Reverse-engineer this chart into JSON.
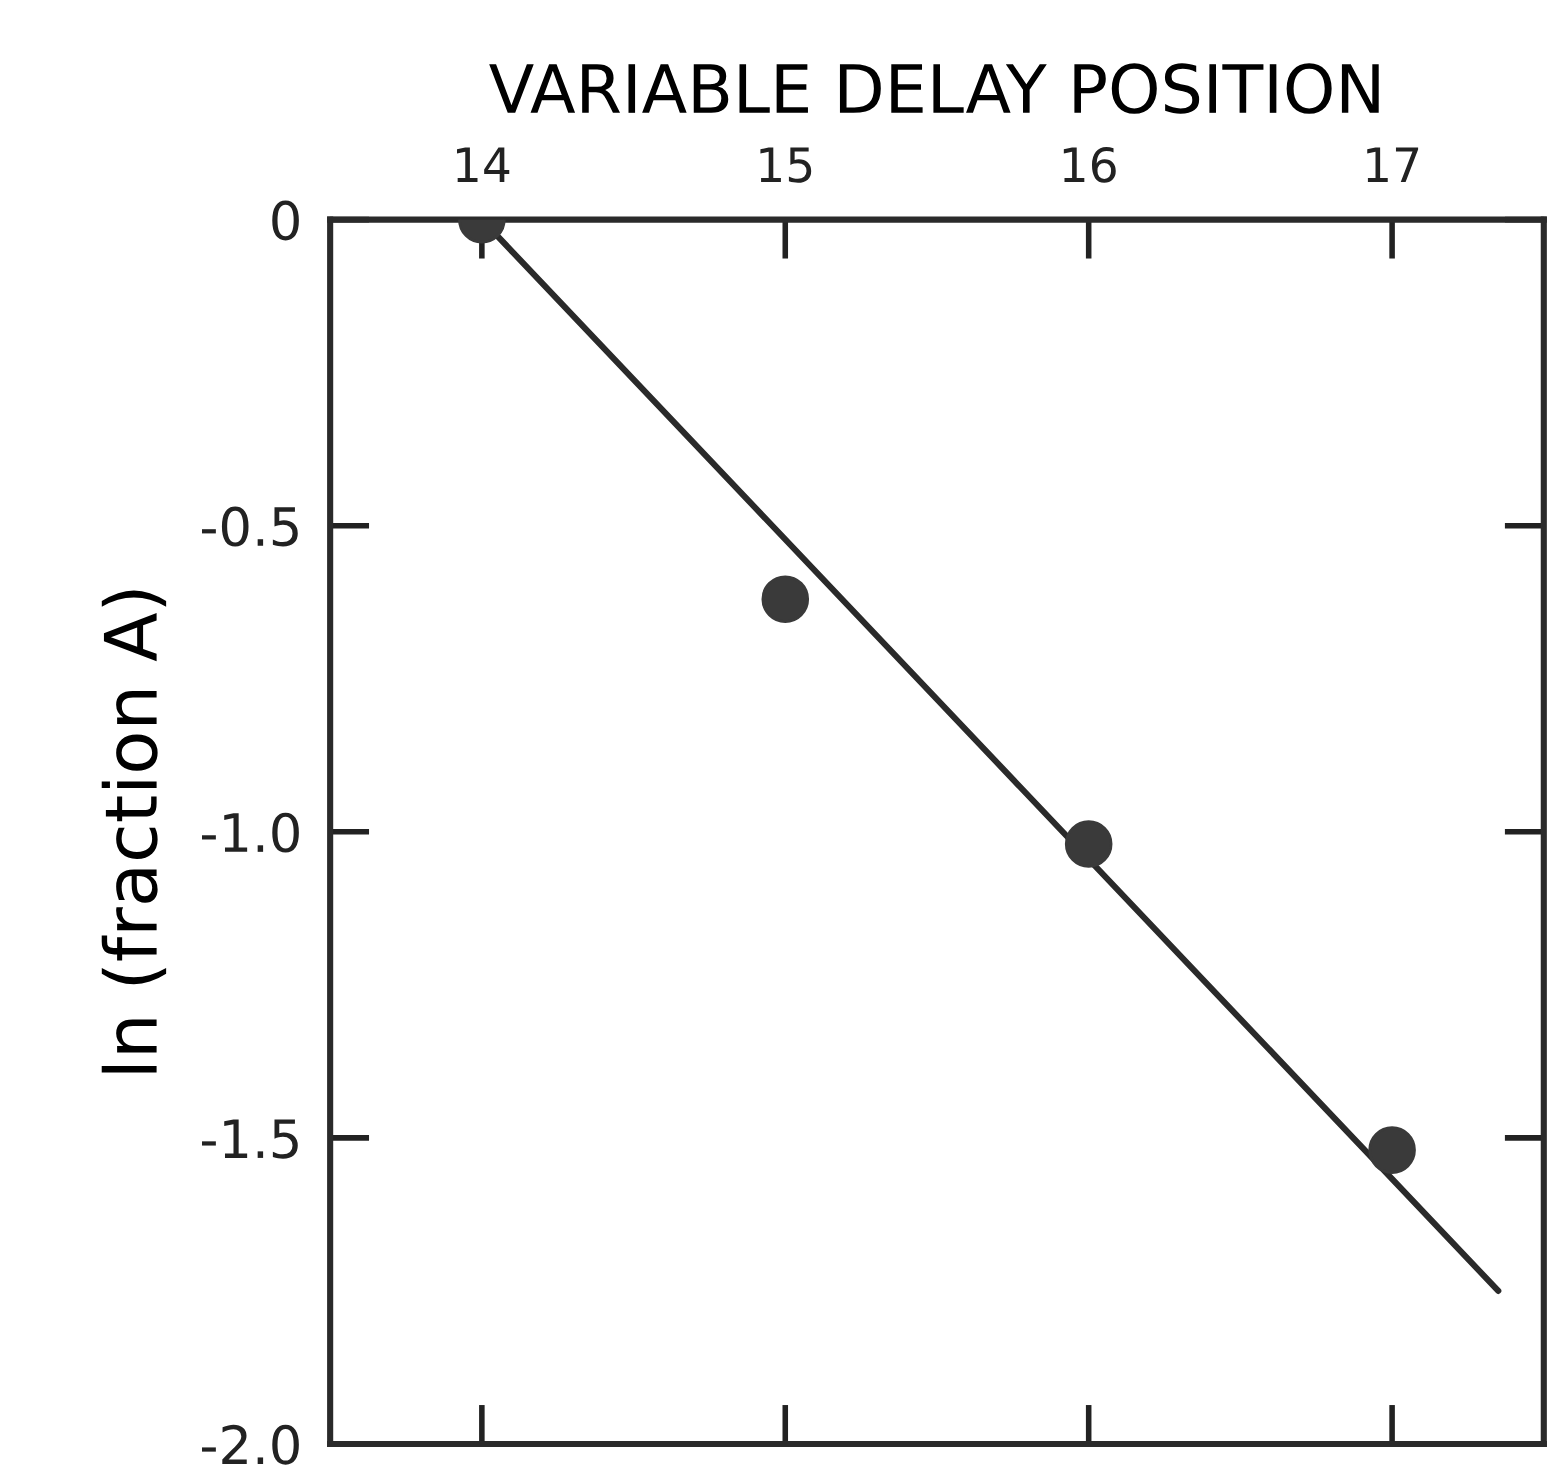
{
  "chart_data": {
    "type": "scatter",
    "xlabel": "VARIABLE DELAY POSITION",
    "ylabel": "ln (fraction A)",
    "xlim": [
      13.5,
      17.5
    ],
    "xticks": [
      14,
      15,
      16,
      17
    ],
    "ylim": [
      -2.0,
      0
    ],
    "yticks": [
      0,
      -0.5,
      {
        "value": -1.0,
        "label": "-1.0"
      },
      -1.5,
      {
        "value": -2.0,
        "label": "-2.0"
      }
    ],
    "grid": false,
    "legend": false,
    "marker": "circle",
    "series": [
      {
        "color": "#3a3a3a",
        "x": [
          14,
          15,
          16,
          17
        ],
        "values": [
          0,
          -0.62,
          -1.02,
          -1.52
        ]
      },
      {
        "type": "line",
        "color": "#2a2a2a",
        "line_style": "solid",
        "marker": "none",
        "x": [
          14,
          17.35
        ],
        "values": [
          0,
          -1.75
        ]
      }
    ]
  }
}
